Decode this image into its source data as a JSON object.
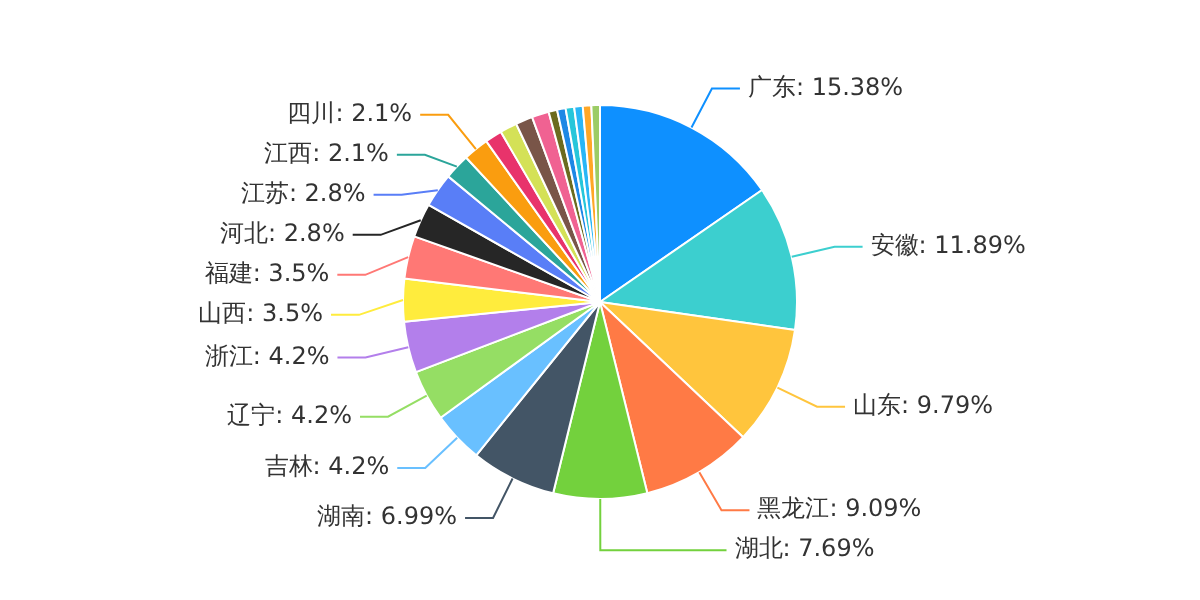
{
  "chart_data": {
    "type": "pie",
    "value_labels": [
      "15.38%",
      "11.89%",
      "9.79%",
      "9.09%",
      "7.69%",
      "6.99%",
      "4.2%",
      "4.2%",
      "4.2%",
      "3.5%",
      "3.5%",
      "2.8%",
      "2.8%",
      "2.1%",
      "2.1%",
      null,
      null,
      null,
      null,
      null,
      null,
      null,
      null,
      null,
      null
    ],
    "categories": [
      "广东",
      "安徽",
      "山东",
      "黑龙江",
      "湖北",
      "湖南",
      "吉林",
      "辽宁",
      "浙江",
      "山西",
      "福建",
      "河北",
      "江苏",
      "江西",
      "四川",
      null,
      null,
      null,
      null,
      null,
      null,
      null,
      null,
      null,
      null
    ],
    "values": [
      15.38,
      11.89,
      9.79,
      9.09,
      7.69,
      6.99,
      4.2,
      4.2,
      4.2,
      3.5,
      3.5,
      2.8,
      2.8,
      2.1,
      2.1,
      1.4,
      1.4,
      1.4,
      1.4,
      0.7,
      0.7,
      0.7,
      0.7,
      0.7,
      0.7
    ],
    "colors": [
      "#0e90ff",
      "#3ccfcf",
      "#ffc53d",
      "#ff7a45",
      "#73d13d",
      "#435566",
      "#69c0ff",
      "#95de64",
      "#b37feb",
      "#ffec3d",
      "#ff7875",
      "#262626",
      "#597ef7",
      "#2ba59a",
      "#fa9d0f",
      "#e8336b",
      "#d4e157",
      "#795548",
      "#f06292",
      "#6b6b1f",
      "#1e88e5",
      "#26c6da",
      "#29b6f6",
      "#ffa726",
      "#9ccc65"
    ]
  }
}
